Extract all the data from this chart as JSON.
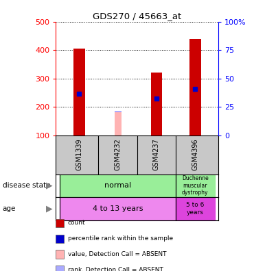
{
  "title": "GDS270 / 45663_at",
  "samples": [
    "GSM1339",
    "GSM4232",
    "GSM4237",
    "GSM4396"
  ],
  "count_values": [
    405,
    null,
    320,
    438
  ],
  "count_absent_values": [
    null,
    180,
    null,
    null
  ],
  "percentile_values": [
    245,
    null,
    228,
    262
  ],
  "rank_absent_values": [
    null,
    183,
    null,
    null
  ],
  "ylim_left": [
    100,
    500
  ],
  "ylim_right": [
    0,
    100
  ],
  "yticks_left": [
    100,
    200,
    300,
    400,
    500
  ],
  "yticks_right": [
    0,
    25,
    50,
    75,
    100
  ],
  "yticklabels_right": [
    "0",
    "25",
    "50",
    "75",
    "100%"
  ],
  "bar_width": 0.3,
  "absent_bar_width": 0.18,
  "count_color": "#cc0000",
  "absent_count_color": "#ffb3b3",
  "percentile_color": "#0000cc",
  "absent_rank_color": "#aaaaff",
  "sample_bg_color": "#c8c8c8",
  "normal_color": "#99ee99",
  "age1_color": "#ee88ee",
  "age2_color": "#dd44dd",
  "legend_labels": [
    "count",
    "percentile rank within the sample",
    "value, Detection Call = ABSENT",
    "rank, Detection Call = ABSENT"
  ],
  "legend_colors": [
    "#cc0000",
    "#0000cc",
    "#ffb3b3",
    "#aaaaff"
  ],
  "disease_normal_color": "#99ee99",
  "disease_duchenne_color": "#99ee99",
  "age_normal_color": "#ee88ee",
  "age_duchenne_color": "#dd44dd"
}
